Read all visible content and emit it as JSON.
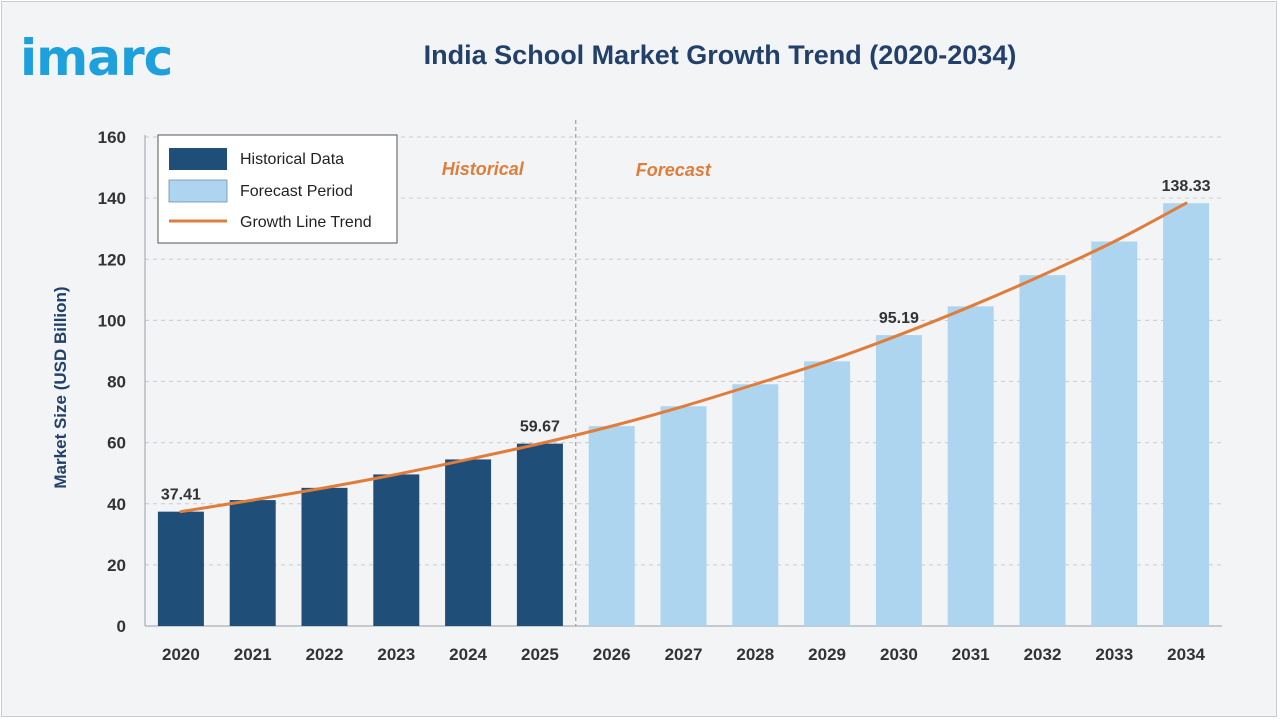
{
  "brand": {
    "logo_text": "imarc"
  },
  "colors": {
    "historical": "#1f4e79",
    "forecast": "#aed5ef",
    "trend": "#e07d3a",
    "axis_text": "#333333",
    "title": "#23406a",
    "section_label": "#e07d3a"
  },
  "chart_data": {
    "type": "bar",
    "title": "India School Market Growth Trend (2020-2034)",
    "xlabel": "",
    "ylabel": "Market Size (USD Billion)",
    "ylim": [
      0,
      160
    ],
    "yticks": [
      0,
      20,
      40,
      60,
      80,
      100,
      120,
      140,
      160
    ],
    "categories": [
      "2020",
      "2021",
      "2022",
      "2023",
      "2024",
      "2025",
      "2026",
      "2027",
      "2028",
      "2029",
      "2030",
      "2031",
      "2032",
      "2033",
      "2034"
    ],
    "values": [
      37.41,
      41.2,
      45.2,
      49.6,
      54.5,
      59.67,
      65.4,
      71.9,
      79.1,
      86.6,
      95.19,
      104.6,
      114.8,
      125.8,
      138.33
    ],
    "period": [
      "historical",
      "historical",
      "historical",
      "historical",
      "historical",
      "historical",
      "forecast",
      "forecast",
      "forecast",
      "forecast",
      "forecast",
      "forecast",
      "forecast",
      "forecast",
      "forecast"
    ],
    "data_labels": [
      {
        "index": 0,
        "text": "37.41"
      },
      {
        "index": 5,
        "text": "59.67"
      },
      {
        "index": 10,
        "text": "95.19"
      },
      {
        "index": 14,
        "text": "138.33"
      }
    ],
    "section_labels": {
      "historical": "Historical",
      "forecast": "Forecast"
    },
    "legend": {
      "placement": "top-left",
      "items": [
        "Historical Data",
        "Forecast Period",
        "Growth Line Trend"
      ]
    },
    "grid": true
  }
}
